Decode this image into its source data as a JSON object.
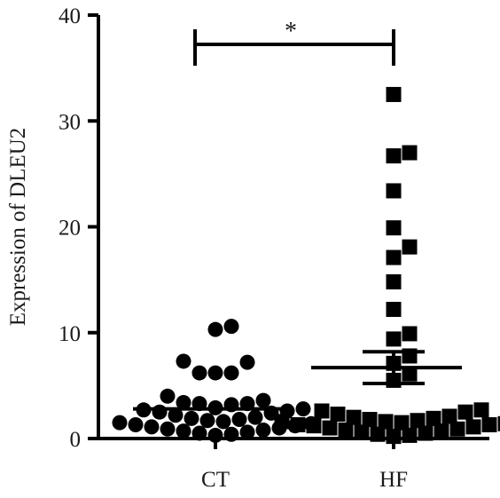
{
  "chart_data": {
    "type": "scatter",
    "title": "",
    "xlabel": "",
    "ylabel": "Expression of DLEU2",
    "ylim": [
      0,
      40
    ],
    "yticks": [
      0,
      10,
      20,
      30,
      40
    ],
    "ytick_labels": [
      "0",
      "10",
      "20",
      "30",
      "40"
    ],
    "categories": [
      "CT",
      "HF"
    ],
    "grid": false,
    "significance": {
      "between": [
        "CT",
        "HF"
      ],
      "label": "*"
    },
    "series": [
      {
        "category": "CT",
        "marker": "circle",
        "color": "#000000",
        "mean": 2.8,
        "values": [
          10.6,
          10.3,
          7.3,
          7.2,
          6.2,
          6.2,
          6.2,
          4.0,
          3.6,
          3.4,
          3.3,
          3.3,
          3.2,
          2.9,
          2.8,
          2.7,
          2.6,
          2.5,
          2.4,
          2.2,
          2.0,
          1.9,
          1.8,
          1.7,
          1.6,
          1.5,
          1.4,
          1.3,
          1.2,
          1.1,
          1.0,
          0.9,
          0.8,
          0.7,
          0.6,
          0.5,
          0.4,
          0.3
        ]
      },
      {
        "category": "HF",
        "marker": "square",
        "color": "#000000",
        "mean": 6.7,
        "sem_low": 5.2,
        "sem_high": 8.2,
        "values": [
          32.5,
          27.0,
          26.7,
          23.4,
          19.9,
          18.1,
          17.1,
          14.8,
          12.2,
          9.9,
          9.4,
          7.8,
          7.1,
          6.1,
          5.5,
          2.7,
          2.6,
          2.5,
          2.3,
          2.1,
          2.0,
          1.9,
          1.9,
          1.8,
          1.7,
          1.6,
          1.6,
          1.5,
          1.4,
          1.3,
          1.3,
          1.2,
          1.1,
          1.0,
          0.9,
          0.8,
          0.7,
          0.6,
          0.5,
          0.4,
          0.3,
          0.2
        ]
      }
    ]
  }
}
